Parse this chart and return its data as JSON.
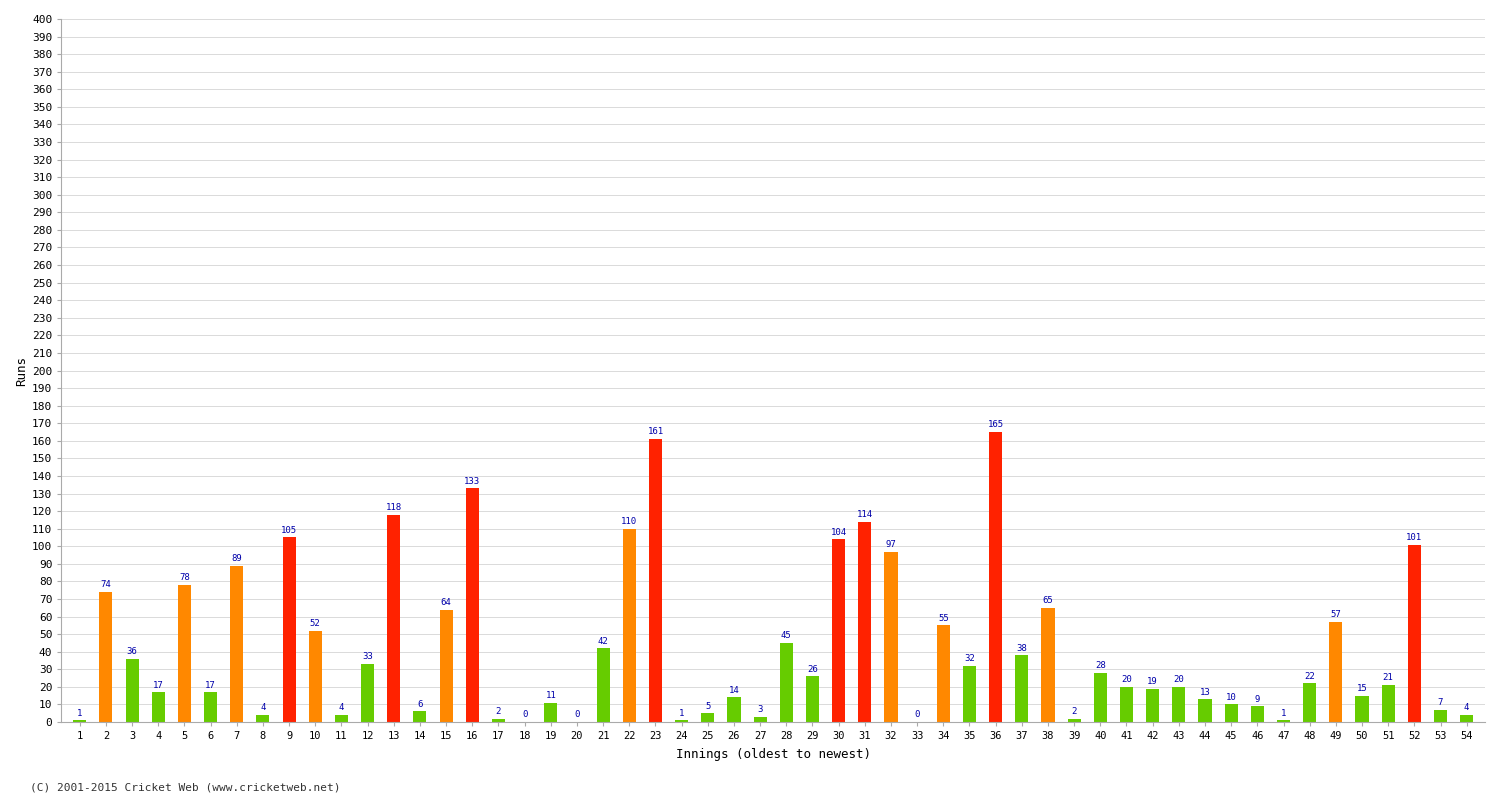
{
  "xlabel": "Innings (oldest to newest)",
  "ylabel": "Runs",
  "ylim": [
    0,
    400
  ],
  "yticks": [
    0,
    10,
    20,
    30,
    40,
    50,
    60,
    70,
    80,
    90,
    100,
    110,
    120,
    130,
    140,
    150,
    160,
    170,
    180,
    190,
    200,
    210,
    220,
    230,
    240,
    250,
    260,
    270,
    280,
    290,
    300,
    310,
    320,
    330,
    340,
    350,
    360,
    370,
    380,
    390,
    400
  ],
  "innings": [
    1,
    2,
    3,
    4,
    5,
    6,
    7,
    8,
    9,
    10,
    11,
    12,
    13,
    14,
    15,
    16,
    17,
    18,
    19,
    20,
    21,
    22,
    23,
    24,
    25,
    26,
    27,
    28,
    29,
    30,
    31,
    32,
    33,
    34,
    35,
    36,
    37,
    38,
    39,
    40,
    41,
    42,
    43,
    44,
    45,
    46,
    47,
    48,
    49,
    50,
    51,
    52,
    53,
    54
  ],
  "scores": [
    1,
    74,
    36,
    17,
    78,
    17,
    89,
    4,
    105,
    52,
    4,
    33,
    118,
    6,
    64,
    133,
    2,
    0,
    11,
    0,
    42,
    110,
    161,
    1,
    5,
    14,
    3,
    45,
    26,
    104,
    114,
    97,
    0,
    55,
    32,
    165,
    38,
    65,
    2,
    28,
    20,
    19,
    20,
    13,
    10,
    9,
    1,
    22,
    57,
    15,
    21,
    101,
    7,
    4
  ],
  "colors": [
    "#66cc00",
    "#ff8800",
    "#66cc00",
    "#66cc00",
    "#ff8800",
    "#66cc00",
    "#ff8800",
    "#66cc00",
    "#ff2200",
    "#ff8800",
    "#66cc00",
    "#66cc00",
    "#ff2200",
    "#66cc00",
    "#ff8800",
    "#ff2200",
    "#66cc00",
    "#ff2200",
    "#66cc00",
    "#ff2200",
    "#66cc00",
    "#ff8800",
    "#ff2200",
    "#66cc00",
    "#66cc00",
    "#66cc00",
    "#66cc00",
    "#66cc00",
    "#66cc00",
    "#ff2200",
    "#ff2200",
    "#ff8800",
    "#66cc00",
    "#ff8800",
    "#66cc00",
    "#ff2200",
    "#66cc00",
    "#ff8800",
    "#66cc00",
    "#66cc00",
    "#66cc00",
    "#66cc00",
    "#66cc00",
    "#66cc00",
    "#66cc00",
    "#66cc00",
    "#66cc00",
    "#66cc00",
    "#ff8800",
    "#66cc00",
    "#66cc00",
    "#ff2200",
    "#66cc00",
    "#66cc00"
  ],
  "label_color": "#0000aa",
  "background_color": "#ffffff",
  "grid_color": "#cccccc",
  "footnote": "(C) 2001-2015 Cricket Web (www.cricketweb.net)"
}
